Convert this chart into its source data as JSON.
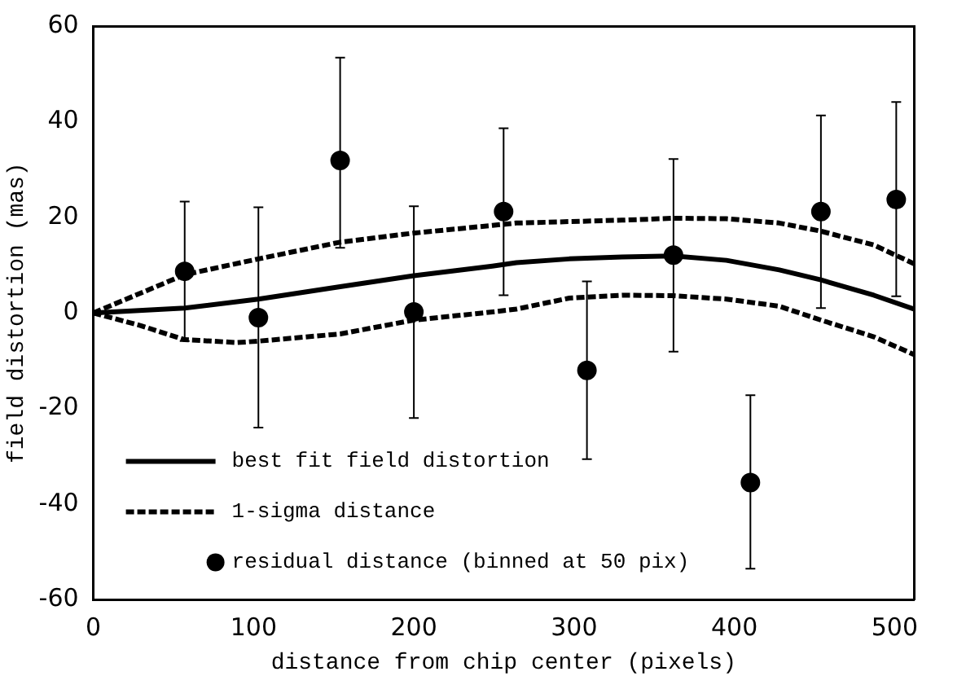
{
  "chart_data": {
    "type": "line",
    "xlabel": "distance from chip center (pixels)",
    "ylabel": "field distortion (mas)",
    "xlim": [
      0,
      512
    ],
    "xticks": [
      0,
      100,
      200,
      300,
      400,
      500
    ],
    "ylim": [
      -60,
      60
    ],
    "yticks": [
      -60,
      -40,
      -20,
      0,
      20,
      40,
      60
    ],
    "grid": false,
    "legend": "bottom left",
    "series": [
      {
        "name": "best fit field distortion",
        "line_style": "solid",
        "marker": "none",
        "color": "#000000",
        "x": [
          0,
          57,
          103,
          154,
          200,
          249,
          264,
          297,
          330,
          362,
          395,
          428,
          454,
          487,
          512
        ],
        "values": [
          0,
          1,
          2.9,
          5.5,
          7.8,
          9.8,
          10.5,
          11.3,
          11.7,
          11.9,
          11,
          9,
          6.9,
          3.7,
          0.8
        ]
      },
      {
        "name": "1-sigma distance",
        "line_style": "dashed",
        "marker": "none",
        "color": "#000000",
        "x": [
          0,
          57,
          103,
          154,
          200,
          249,
          264,
          330,
          362,
          395,
          428,
          454,
          487,
          512
        ],
        "values": [
          0,
          8,
          11.3,
          14.8,
          16.7,
          18.3,
          18.8,
          19.4,
          19.8,
          19.7,
          18.8,
          17.1,
          14.2,
          10.3
        ]
      },
      {
        "line_style": "dashed",
        "marker": "none",
        "color": "#000000",
        "x": [
          0,
          30,
          57,
          90,
          103,
          154,
          200,
          249,
          264,
          297,
          330,
          362,
          395,
          428,
          454,
          487,
          512
        ],
        "values": [
          0,
          -2.7,
          -5.6,
          -6.2,
          -5.9,
          -4.4,
          -1.5,
          0.2,
          0.8,
          3.1,
          3.7,
          3.6,
          2.9,
          1.4,
          -1.5,
          -5,
          -8.7
        ]
      },
      {
        "name": "residual distance (binned at 50 pix)",
        "type": "scatter",
        "marker": "circle",
        "color": "#000000",
        "x": [
          57,
          103,
          154,
          200,
          256,
          308,
          362,
          410,
          454,
          501
        ],
        "values": [
          8.7,
          -1,
          31.9,
          0.2,
          21.2,
          -12,
          12.1,
          -35.5,
          21.2,
          23.7
        ],
        "errors": [
          [
            -5.9,
            23.3
          ],
          [
            -24,
            22.1
          ],
          [
            13.6,
            53.4
          ],
          [
            -22,
            22.3
          ],
          [
            3.7,
            38.6
          ],
          [
            -30.6,
            6.6
          ],
          [
            -8.1,
            32.2
          ],
          [
            -53.5,
            -17.2
          ],
          [
            1,
            41.3
          ],
          [
            3.5,
            44.1
          ]
        ]
      }
    ]
  }
}
